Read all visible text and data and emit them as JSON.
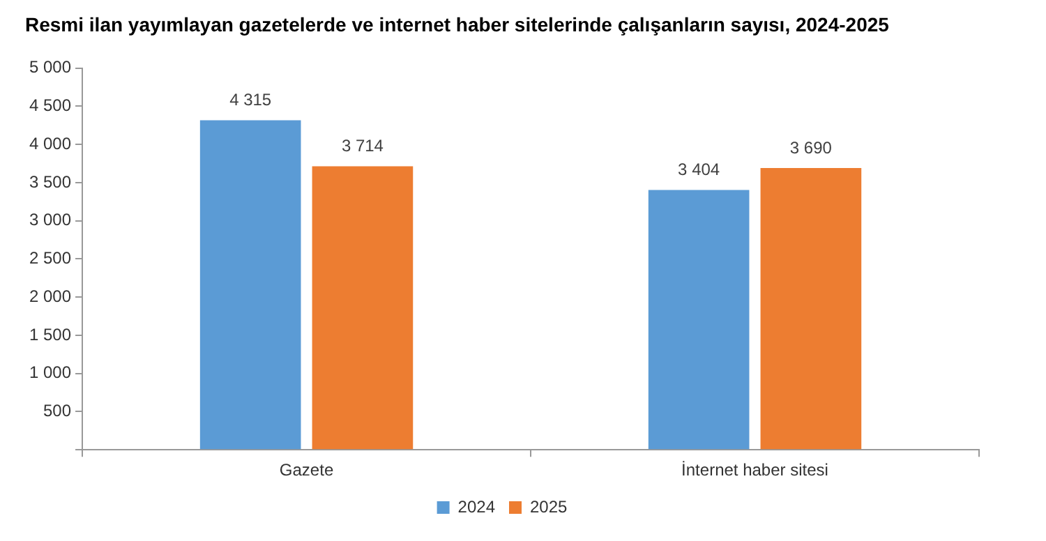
{
  "chart_data": {
    "type": "bar",
    "title": "Resmi ilan yayımlayan gazetelerde ve internet haber sitelerinde çalışanların sayısı, 2024-2025",
    "categories": [
      "Gazete",
      "İnternet haber sitesi"
    ],
    "series": [
      {
        "name": "2024",
        "color": "#5b9bd5",
        "values": [
          4315,
          3404
        ],
        "value_labels": [
          "4 315",
          "3 404"
        ]
      },
      {
        "name": "2025",
        "color": "#ed7d31",
        "values": [
          3714,
          3690
        ],
        "value_labels": [
          "3 714",
          "3 690"
        ]
      }
    ],
    "ylim": [
      0,
      5000
    ],
    "yticks": [
      {
        "value": 0,
        "label": null
      },
      {
        "value": 500,
        "label": "500"
      },
      {
        "value": 1000,
        "label": "1 000"
      },
      {
        "value": 1500,
        "label": "1 500"
      },
      {
        "value": 2000,
        "label": "2 000"
      },
      {
        "value": 2500,
        "label": "2 500"
      },
      {
        "value": 3000,
        "label": "3 000"
      },
      {
        "value": 3500,
        "label": "3 500"
      },
      {
        "value": 4000,
        "label": "4 000"
      },
      {
        "value": 4500,
        "label": "4 500"
      },
      {
        "value": 5000,
        "label": "5 000"
      }
    ],
    "grid": false,
    "legend": "bottom"
  }
}
